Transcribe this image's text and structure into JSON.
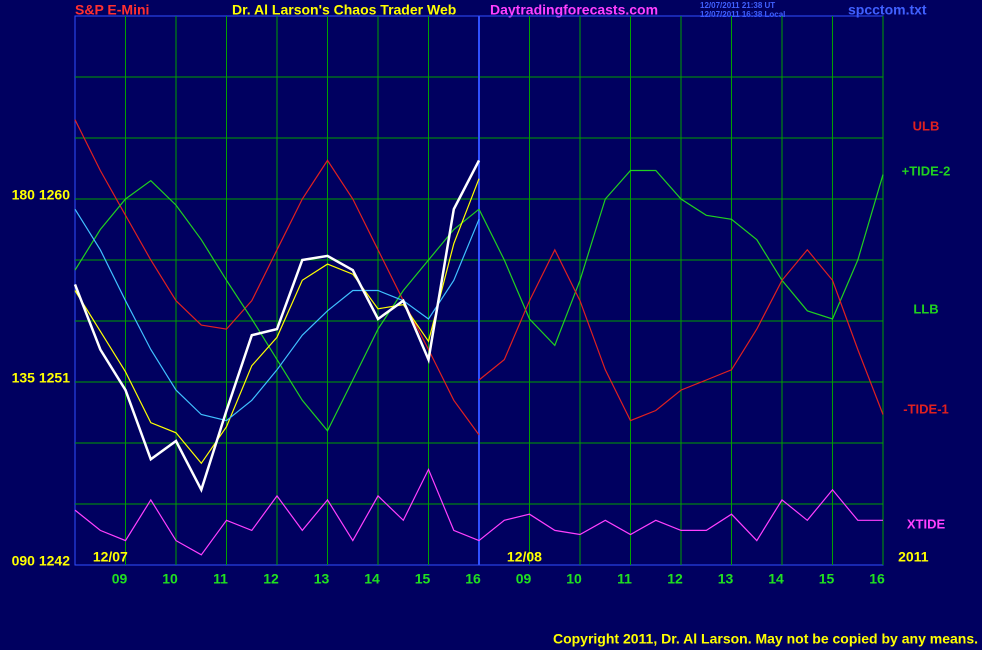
{
  "chart_data": {
    "type": "line",
    "header": {
      "symbol": "S&P E-Mini",
      "title": "Dr. Al Larson's Chaos Trader Web",
      "site": "Daytradingforecasts.com",
      "stamp_ut": "12/07/2011 21:38 UT",
      "stamp_local": "12/07/2011 16:38 Local",
      "file": "spcctom.txt"
    },
    "copyright": "Copyright 2011, Dr. Al Larson. May not be copied by any means.",
    "xlim": [
      0,
      16
    ],
    "x": [
      0,
      0.5,
      1,
      1.5,
      2,
      2.5,
      3,
      3.5,
      4,
      4.5,
      5,
      5.5,
      6,
      6.5,
      7,
      7.5,
      8,
      8.5,
      9,
      9.5,
      10,
      10.5,
      11,
      11.5,
      12,
      12.5,
      13,
      13.5,
      14,
      14.5,
      15,
      15.5,
      16
    ],
    "xticks": [
      {
        "value": 1,
        "label": "09"
      },
      {
        "value": 2,
        "label": "10"
      },
      {
        "value": 3,
        "label": "11"
      },
      {
        "value": 4,
        "label": "12"
      },
      {
        "value": 5,
        "label": "13"
      },
      {
        "value": 6,
        "label": "14"
      },
      {
        "value": 7,
        "label": "15"
      },
      {
        "value": 8,
        "label": "16"
      },
      {
        "value": 9,
        "label": "09"
      },
      {
        "value": 10,
        "label": "10"
      },
      {
        "value": 11,
        "label": "11"
      },
      {
        "value": 12,
        "label": "12"
      },
      {
        "value": 13,
        "label": "13"
      },
      {
        "value": 14,
        "label": "14"
      },
      {
        "value": 15,
        "label": "15"
      },
      {
        "value": 16,
        "label": "16"
      }
    ],
    "date_labels": [
      {
        "value": 0.7,
        "label": "12/07"
      },
      {
        "value": 8.9,
        "label": "12/08"
      },
      {
        "value": 16.6,
        "label": "2011"
      }
    ],
    "ylim": [
      1242,
      1269
    ],
    "yticks": [
      {
        "value": 1260,
        "label": "180  1260"
      },
      {
        "value": 1251,
        "label": "135  1251"
      },
      {
        "value": 1242,
        "label": "090  1242"
      }
    ],
    "ygrid": [
      1245,
      1248,
      1251,
      1254,
      1257,
      1260,
      1263,
      1266
    ],
    "grid": true,
    "price": {
      "color": "#ffffff",
      "values": [
        1255.8,
        1252.6,
        1250.6,
        1247.2,
        1248.1,
        1245.7,
        1249.6,
        1253.3,
        1253.6,
        1257.0,
        1257.2,
        1256.5,
        1254.1,
        1255.0,
        1252.1,
        1259.5,
        1261.9,
        null,
        null,
        null,
        null,
        null,
        null,
        null,
        null,
        null,
        null,
        null,
        null,
        null,
        null,
        null,
        null
      ]
    },
    "overlays": [
      {
        "color": "#ffff00",
        "values": [
          1255.5,
          1253.5,
          1251.5,
          1249.0,
          1248.5,
          1247.0,
          1248.8,
          1251.8,
          1253.2,
          1256.0,
          1256.8,
          1256.3,
          1254.6,
          1254.8,
          1253.0,
          1257.8,
          1261.0,
          null,
          null,
          null,
          null,
          null,
          null,
          null,
          null,
          null,
          null,
          null,
          null,
          null,
          null,
          null,
          null
        ]
      },
      {
        "color": "#40c0ff",
        "values": [
          1259.5,
          1257.5,
          1255.0,
          1252.6,
          1250.6,
          1249.4,
          1249.1,
          1250.1,
          1251.6,
          1253.3,
          1254.5,
          1255.5,
          1255.5,
          1255.0,
          1254.1,
          1256.0,
          1259.0,
          null,
          null,
          null,
          null,
          null,
          null,
          null,
          null,
          null,
          null,
          null,
          null,
          null,
          null,
          null,
          null
        ]
      }
    ],
    "series": [
      {
        "name": "ULB",
        "color": "#e02020",
        "values": [
          1263.9,
          1261.4,
          1259.2,
          1257.0,
          1255.0,
          1253.8,
          1253.6,
          1255.0,
          1257.5,
          1260.0,
          1261.9,
          1260.0,
          1257.5,
          1255.0,
          1252.6,
          1250.1,
          1248.4,
          null,
          null,
          null,
          null,
          null,
          null,
          null,
          null,
          null,
          null,
          null,
          null,
          null,
          null,
          null,
          null
        ]
      },
      {
        "name": "+TIDE-2",
        "color": "#20d020",
        "values": [
          null,
          null,
          null,
          null,
          null,
          null,
          null,
          null,
          null,
          null,
          null,
          null,
          null,
          null,
          null,
          null,
          1259.5,
          1257.0,
          1254.1,
          1252.8,
          1256.0,
          1260.0,
          1261.4,
          1261.4,
          1260.0,
          1259.2,
          1259.0,
          1258.0,
          1256.0,
          1254.5,
          1254.1,
          1257.0,
          1261.2
        ]
      },
      {
        "name": "LLB",
        "color": "#20d020",
        "values": [
          1256.5,
          1258.5,
          1260.0,
          1260.9,
          1259.7,
          1258.0,
          1256.0,
          1254.1,
          1252.1,
          1250.1,
          1248.6,
          1251.1,
          1253.6,
          1255.5,
          1257.0,
          1258.5,
          1259.5,
          null,
          null,
          null,
          null,
          null,
          null,
          null,
          null,
          null,
          null,
          null,
          null,
          null,
          null,
          null,
          null
        ]
      },
      {
        "name": "-TIDE-1",
        "color": "#e02020",
        "values": [
          null,
          null,
          null,
          null,
          null,
          null,
          null,
          null,
          null,
          null,
          null,
          null,
          null,
          null,
          null,
          null,
          1251.1,
          1252.1,
          1255.0,
          1257.5,
          1255.0,
          1251.6,
          1249.1,
          1249.6,
          1250.6,
          1251.1,
          1251.6,
          1253.6,
          1256.0,
          1257.5,
          1256.0,
          1252.6,
          1249.4
        ]
      },
      {
        "name": "XTIDE",
        "color": "#ff40ff",
        "values": [
          1244.7,
          1243.7,
          1243.2,
          1245.2,
          1243.2,
          1242.5,
          1244.2,
          1243.7,
          1245.4,
          1243.7,
          1245.2,
          1243.2,
          1245.4,
          1244.2,
          1246.7,
          1243.7,
          1243.2,
          1244.2,
          1244.5,
          1243.7,
          1243.5,
          1244.2,
          1243.5,
          1244.2,
          1243.7,
          1243.7,
          1244.5,
          1243.2,
          1245.2,
          1244.2,
          1245.7,
          1244.2,
          1244.2
        ]
      }
    ]
  }
}
